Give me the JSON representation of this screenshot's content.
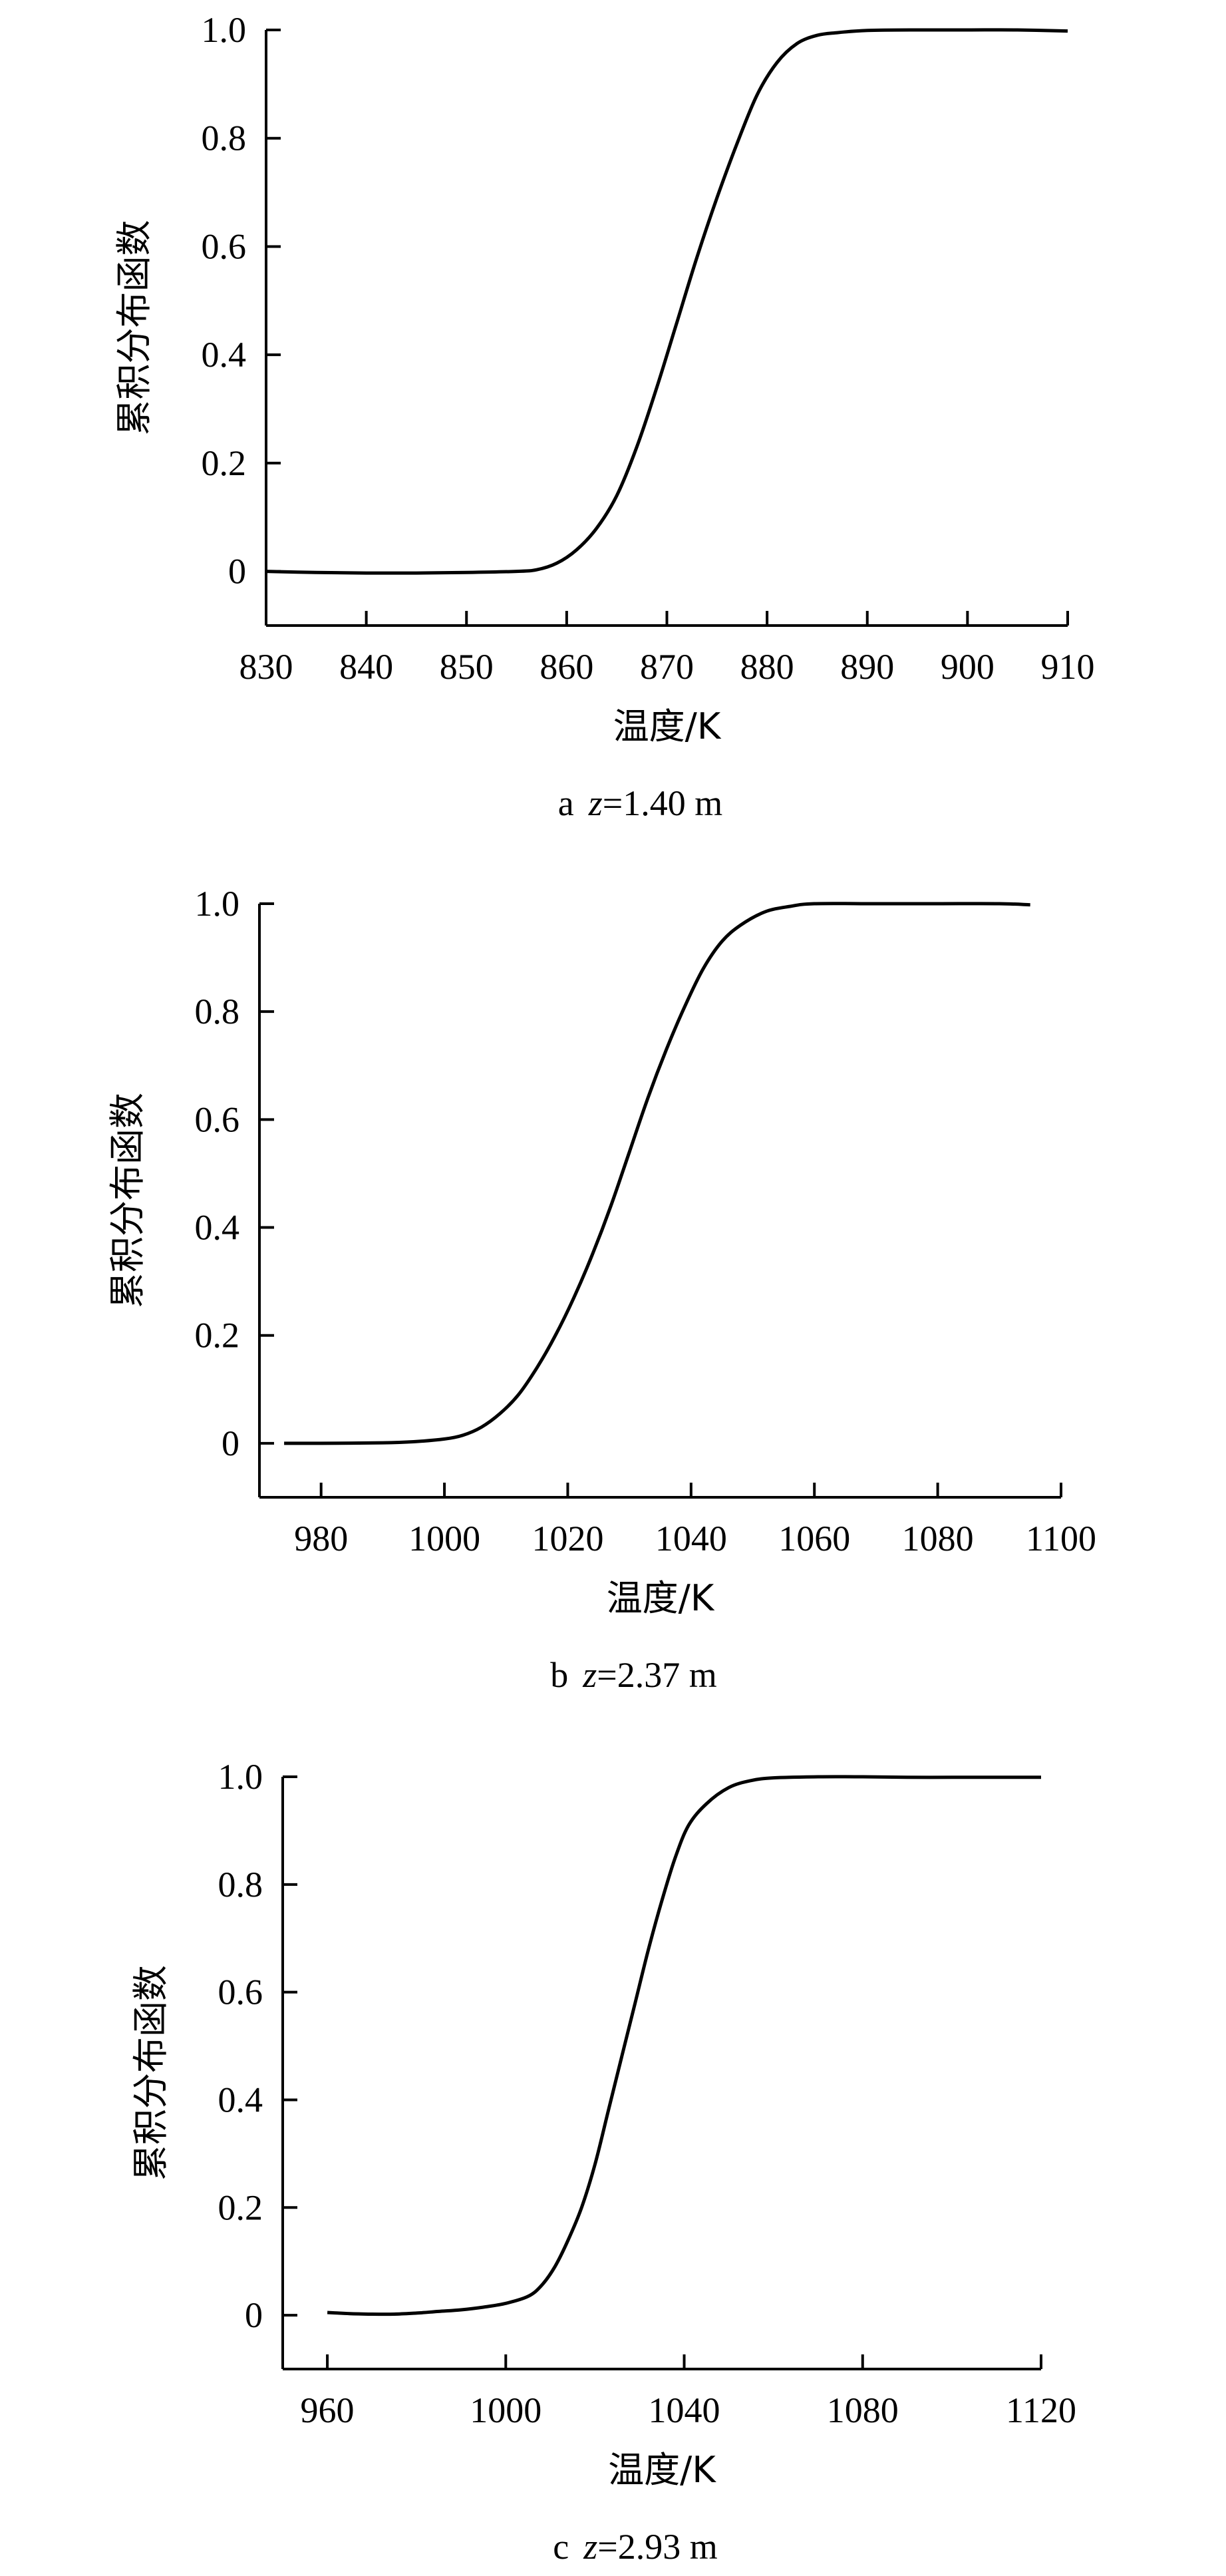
{
  "chart_data": [
    {
      "type": "line",
      "panel": "a",
      "caption_letter": "a",
      "caption_var": "z",
      "caption_value": "=1.40 m",
      "xlabel": "温度/K",
      "ylabel": "累积分布函数",
      "xlim": [
        830,
        910
      ],
      "ylim": [
        -0.1,
        1.0
      ],
      "xticks": [
        "830",
        "840",
        "850",
        "860",
        "870",
        "880",
        "890",
        "900",
        "910"
      ],
      "yticks": [
        "0",
        "0.2",
        "0.4",
        "0.6",
        "0.8",
        "1.0"
      ],
      "grid": false,
      "series": [
        {
          "x": [
            830,
            835,
            840,
            845,
            850,
            855,
            857,
            859,
            861,
            863,
            865,
            867,
            869,
            871,
            873,
            875,
            877,
            879,
            881,
            883,
            885,
            887,
            890,
            895,
            900,
            905,
            910
          ],
          "y": [
            0.0,
            -0.002,
            -0.003,
            -0.003,
            -0.002,
            0.0,
            0.003,
            0.015,
            0.04,
            0.08,
            0.14,
            0.23,
            0.34,
            0.46,
            0.58,
            0.69,
            0.79,
            0.88,
            0.94,
            0.975,
            0.99,
            0.995,
            0.999,
            1.0,
            1.0,
            1.0,
            0.998
          ]
        }
      ]
    },
    {
      "type": "line",
      "panel": "b",
      "caption_letter": "b",
      "caption_var": "z",
      "caption_value": "=2.37 m",
      "xlabel": "温度/K",
      "ylabel": "累积分布函数",
      "xlim": [
        970,
        1100
      ],
      "ylim": [
        -0.1,
        1.0
      ],
      "xticks": [
        "980",
        "1000",
        "1020",
        "1040",
        "1060",
        "1080",
        "1100"
      ],
      "yticks": [
        "0",
        "0.2",
        "0.4",
        "0.6",
        "0.8",
        "1.0"
      ],
      "grid": false,
      "series": [
        {
          "x": [
            974,
            980,
            990,
            995,
            1000,
            1003,
            1006,
            1009,
            1012,
            1015,
            1018,
            1021,
            1024,
            1027,
            1030,
            1033,
            1036,
            1039,
            1042,
            1045,
            1048,
            1052,
            1056,
            1060,
            1070,
            1080,
            1090,
            1095
          ],
          "y": [
            0.0,
            0.0,
            0.001,
            0.003,
            0.008,
            0.015,
            0.03,
            0.055,
            0.09,
            0.14,
            0.2,
            0.27,
            0.35,
            0.44,
            0.54,
            0.64,
            0.73,
            0.81,
            0.88,
            0.93,
            0.96,
            0.985,
            0.995,
            1.0,
            1.0,
            1.0,
            1.0,
            0.998
          ]
        }
      ]
    },
    {
      "type": "line",
      "panel": "c",
      "caption_letter": "c",
      "caption_var": "z",
      "caption_value": "=2.93 m",
      "xlabel": "温度/K",
      "ylabel": "累积分布函数",
      "xlim": [
        950,
        1120
      ],
      "ylim": [
        -0.1,
        1.0
      ],
      "xticks": [
        "960",
        "1000",
        "1040",
        "1080",
        "1120"
      ],
      "yticks": [
        "0",
        "0.2",
        "0.4",
        "0.6",
        "0.8",
        "1.0"
      ],
      "grid": false,
      "series": [
        {
          "x": [
            960,
            965,
            970,
            975,
            980,
            985,
            990,
            995,
            1000,
            1005,
            1008,
            1011,
            1014,
            1017,
            1020,
            1023,
            1026,
            1029,
            1032,
            1035,
            1038,
            1041,
            1045,
            1050,
            1055,
            1060,
            1070,
            1080,
            1090,
            1100,
            1110,
            1120
          ],
          "y": [
            0.005,
            0.003,
            0.002,
            0.002,
            0.004,
            0.007,
            0.01,
            0.015,
            0.022,
            0.035,
            0.055,
            0.09,
            0.14,
            0.2,
            0.28,
            0.38,
            0.48,
            0.58,
            0.68,
            0.77,
            0.85,
            0.91,
            0.95,
            0.98,
            0.993,
            0.998,
            1.0,
            1.0,
            0.999,
            0.999,
            0.999,
            0.999
          ]
        }
      ]
    }
  ]
}
